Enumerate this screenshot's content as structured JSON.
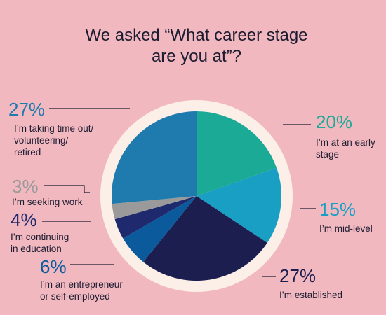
{
  "chart_data": {
    "type": "pie",
    "title": "We asked “What career stage\nare you at”?",
    "categories": [
      "I’m at an early\nstage",
      "I’m mid-level",
      "I’m established",
      "I’m an entrepreneur\nor self-employed",
      "I’m continuing\nin education",
      "I’m seeking work",
      "I’m taking time out/\nvolunteering/\nretired"
    ],
    "values": [
      20,
      15,
      27,
      6,
      4,
      3,
      27
    ],
    "value_labels": [
      "20%",
      "15%",
      "27%",
      "6%",
      "4%",
      "3%",
      "27%"
    ],
    "colors": [
      "#1aaa96",
      "#1a9fc4",
      "#1c1e50",
      "#0a5a9c",
      "#1f2a6e",
      "#9a9a9a",
      "#1f7aae"
    ]
  }
}
